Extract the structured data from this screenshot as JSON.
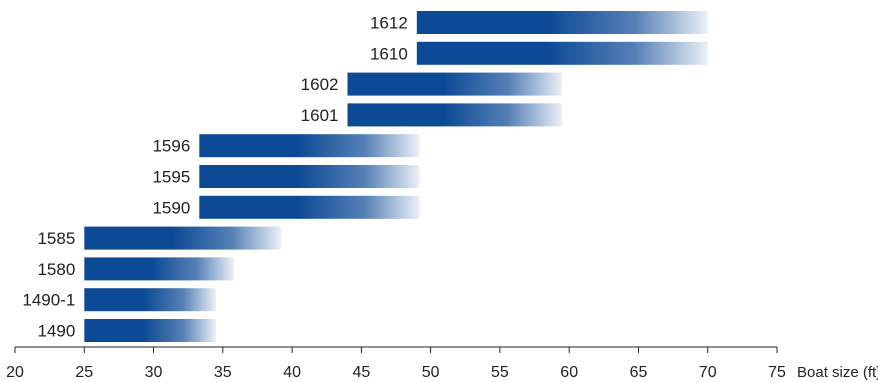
{
  "chart_data": {
    "type": "bar",
    "orientation": "horizontal",
    "representation": "floating range bars with gradient fade toward max end",
    "xlabel": "Boat size (ft)",
    "xlim": [
      20,
      75
    ],
    "xticks": [
      20,
      25,
      30,
      35,
      40,
      45,
      50,
      55,
      60,
      65,
      70,
      75
    ],
    "grid": false,
    "bar_color": "#0d4a96",
    "bars": [
      {
        "label": "1612",
        "min": 49,
        "max": 70
      },
      {
        "label": "1610",
        "min": 49,
        "max": 70
      },
      {
        "label": "1602",
        "min": 44,
        "max": 59.5
      },
      {
        "label": "1601",
        "min": 44,
        "max": 59.5
      },
      {
        "label": "1596",
        "min": 33.3,
        "max": 49.2
      },
      {
        "label": "1595",
        "min": 33.3,
        "max": 49.2
      },
      {
        "label": "1590",
        "min": 33.3,
        "max": 49.2
      },
      {
        "label": "1585",
        "min": 25,
        "max": 39.2
      },
      {
        "label": "1580",
        "min": 25,
        "max": 35.8
      },
      {
        "label": "1490-1",
        "min": 25,
        "max": 34.5
      },
      {
        "label": "1490",
        "min": 25,
        "max": 34.5
      }
    ]
  }
}
